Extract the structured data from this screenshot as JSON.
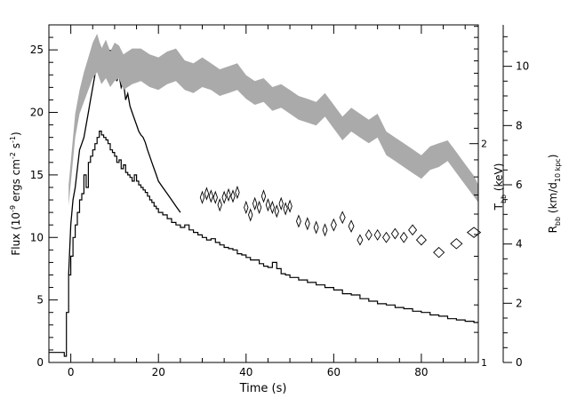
{
  "chart_data": {
    "type": "line",
    "title": "",
    "xlabel": "Time (s)",
    "xlim": [
      -5,
      93
    ],
    "x_ticks": [
      0,
      20,
      40,
      60,
      80
    ],
    "ylabel_left": {
      "main": "Flux (10",
      "sup": "-9",
      "rest": " ergs cm",
      "sup2": "-2",
      "rest2": " s",
      "sup3": "-1",
      "end": ")"
    },
    "ylim_left": [
      0,
      27
    ],
    "y_ticks_left": [
      0,
      5,
      10,
      15,
      20,
      25
    ],
    "ylabel_T": {
      "main": "T",
      "sub": "bb",
      "rest": " (keV)"
    },
    "T_ticks": [
      1,
      2
    ],
    "T_scale": "log",
    "T_map": {
      "T1": 1,
      "flux_at_T1": 0,
      "T2": 2,
      "flux_at_T2": 17.5
    },
    "ylabel_R": {
      "main": "R",
      "sub": "bb",
      "rest": " (km/d",
      "sub2": "10 kpc",
      "end": ")"
    },
    "R_ticks": [
      0,
      2,
      4,
      6,
      8,
      10
    ],
    "R_per_flux": 0.4222,
    "series": [
      {
        "style": "step",
        "axis": "flux",
        "color": "#000000",
        "x": [
          -5,
          -2,
          -1.5,
          -1,
          -0.5,
          0,
          0.5,
          1,
          1.5,
          2,
          2.5,
          3,
          3.5,
          4,
          4.5,
          5,
          5.5,
          6,
          6.5,
          7,
          7.5,
          8,
          8.5,
          9,
          9.5,
          10,
          10.5,
          11,
          11.5,
          12,
          12.5,
          13,
          13.5,
          14,
          14.5,
          15,
          15.5,
          16,
          16.5,
          17,
          17.5,
          18,
          18.5,
          19,
          19.5,
          20,
          21,
          22,
          23,
          24,
          25,
          26,
          27,
          28,
          29,
          30,
          31,
          32,
          33,
          34,
          35,
          36,
          37,
          38,
          39,
          40,
          41,
          42,
          43,
          44,
          45,
          46,
          47,
          48,
          49,
          50,
          52,
          54,
          56,
          58,
          60,
          62,
          64,
          66,
          68,
          70,
          72,
          74,
          76,
          78,
          80,
          82,
          84,
          86,
          88,
          90,
          92,
          93
        ],
        "y": [
          0.8,
          0.8,
          0.5,
          4,
          7,
          8.5,
          10,
          11,
          12,
          13,
          13.5,
          15,
          14,
          16,
          16.5,
          17,
          17.5,
          18,
          18.5,
          18.2,
          18,
          17.8,
          17.5,
          17,
          16.8,
          16.5,
          16,
          16.2,
          15.5,
          15.8,
          15.2,
          15,
          14.8,
          14.5,
          15,
          14.5,
          14.2,
          14,
          13.8,
          13.6,
          13.3,
          13,
          12.8,
          12.5,
          12.3,
          12,
          11.8,
          11.5,
          11.2,
          11,
          10.8,
          11,
          10.6,
          10.4,
          10.2,
          10,
          9.8,
          9.9,
          9.6,
          9.4,
          9.2,
          9.1,
          9,
          8.7,
          8.6,
          8.4,
          8.2,
          8.2,
          7.9,
          7.7,
          7.6,
          8,
          7.5,
          7.1,
          7,
          6.8,
          6.6,
          6.4,
          6.2,
          6,
          5.8,
          5.5,
          5.4,
          5.1,
          4.9,
          4.7,
          4.6,
          4.4,
          4.3,
          4.1,
          4,
          3.8,
          3.7,
          3.5,
          3.4,
          3.3,
          3.2,
          3.2
        ]
      },
      {
        "style": "line",
        "axis": "flux",
        "color": "#000000",
        "x": [
          -0.5,
          0,
          0.5,
          1,
          1.5,
          2,
          2.5,
          3,
          3.5,
          4,
          4.5,
          5,
          5.5,
          6,
          6.5,
          7,
          7.5,
          8,
          8.5,
          9,
          9.5,
          10,
          10.5,
          11,
          11.5,
          12,
          12.5,
          13,
          13.5,
          14,
          14.5,
          15,
          15.5,
          16,
          16.5,
          17,
          17.5,
          18,
          18.5,
          19,
          19.5,
          20,
          21,
          22,
          23,
          24,
          25
        ],
        "y": [
          7,
          11,
          13,
          14,
          15.5,
          17,
          17.5,
          18,
          19,
          20,
          21,
          22,
          23,
          24,
          25.5,
          25,
          24.5,
          25.5,
          24,
          25,
          23,
          24,
          22.5,
          23,
          22,
          22.5,
          21,
          21.5,
          20.5,
          20,
          19.5,
          19,
          18.5,
          18.2,
          18,
          17.6,
          17,
          16.5,
          16,
          15.5,
          15,
          14.5,
          14,
          13.5,
          13,
          12.5,
          12
        ]
      },
      {
        "style": "band",
        "axis": "R",
        "color": "#aaaaaa",
        "x": [
          -0.5,
          1,
          2,
          3,
          4,
          5,
          6,
          7,
          8,
          9,
          10,
          11,
          12,
          14,
          16,
          18,
          20,
          22,
          24,
          26,
          28,
          30,
          32,
          34,
          36,
          38,
          40,
          42,
          44,
          46,
          48,
          50,
          52,
          54,
          56,
          58,
          60,
          62,
          64,
          66,
          68,
          70,
          72,
          74,
          76,
          78,
          80,
          82,
          84,
          86,
          88,
          90,
          92,
          93
        ],
        "y_low": [
          5.3,
          7.6,
          8.4,
          8.8,
          9.2,
          9.6,
          9.8,
          9.4,
          9.6,
          9.3,
          9.5,
          9.6,
          9.2,
          9.4,
          9.5,
          9.3,
          9.2,
          9.4,
          9.5,
          9.2,
          9.1,
          9.3,
          9.2,
          9.0,
          9.1,
          9.2,
          8.9,
          8.7,
          8.8,
          8.5,
          8.6,
          8.4,
          8.2,
          8.1,
          8.0,
          8.3,
          7.9,
          7.5,
          7.8,
          7.6,
          7.4,
          7.6,
          7.0,
          6.8,
          6.6,
          6.4,
          6.2,
          6.5,
          6.6,
          6.8,
          6.4,
          6.0,
          5.6,
          5.4
        ],
        "y_high": [
          6.0,
          8.4,
          9.2,
          9.8,
          10.3,
          10.8,
          11.1,
          10.6,
          10.9,
          10.5,
          10.8,
          10.7,
          10.4,
          10.6,
          10.6,
          10.4,
          10.3,
          10.5,
          10.6,
          10.2,
          10.1,
          10.3,
          10.1,
          9.9,
          10.0,
          10.1,
          9.7,
          9.5,
          9.6,
          9.3,
          9.4,
          9.2,
          9.0,
          8.9,
          8.8,
          9.1,
          8.7,
          8.3,
          8.6,
          8.4,
          8.2,
          8.4,
          7.8,
          7.6,
          7.4,
          7.2,
          7.0,
          7.3,
          7.4,
          7.5,
          7.1,
          6.7,
          6.3,
          6.0
        ]
      },
      {
        "style": "diamond",
        "axis": "T",
        "color": "#000000",
        "x": [
          30,
          31,
          32,
          33,
          34,
          35,
          36,
          37,
          38,
          40,
          41,
          42,
          43,
          44,
          45,
          46,
          47,
          48,
          49,
          50,
          52,
          54,
          56,
          58,
          60,
          62,
          64,
          66,
          68,
          70,
          72,
          74,
          76,
          78,
          80,
          84,
          88,
          92
        ],
        "y": [
          13.2,
          13.5,
          13.3,
          13.2,
          12.6,
          13.2,
          13.4,
          13.3,
          13.6,
          12.4,
          11.8,
          12.7,
          12.4,
          13.3,
          12.6,
          12.4,
          12.1,
          12.7,
          12.3,
          12.5,
          11.3,
          11.1,
          10.8,
          10.6,
          11.0,
          11.6,
          10.9,
          9.8,
          10.2,
          10.2,
          10.0,
          10.3,
          10.0,
          10.6,
          9.8,
          8.8,
          9.5,
          10.4
        ],
        "w": [
          0.9,
          0.9,
          0.9,
          0.9,
          0.9,
          0.9,
          0.9,
          0.9,
          0.9,
          0.9,
          0.9,
          0.9,
          0.9,
          0.9,
          0.9,
          0.9,
          0.9,
          0.9,
          0.9,
          0.9,
          1.0,
          1.0,
          1.0,
          1.0,
          1.2,
          1.2,
          1.2,
          1.2,
          1.4,
          1.4,
          1.6,
          1.6,
          1.6,
          1.8,
          2.2,
          2.4,
          2.6,
          3.0
        ],
        "h": [
          0.9,
          0.9,
          0.9,
          0.9,
          0.9,
          0.9,
          0.9,
          0.9,
          0.9,
          0.9,
          0.9,
          0.9,
          0.9,
          0.9,
          0.9,
          0.9,
          0.9,
          0.9,
          0.9,
          0.9,
          0.9,
          0.9,
          0.9,
          0.9,
          0.9,
          0.9,
          0.9,
          0.8,
          0.8,
          0.8,
          0.8,
          0.8,
          0.8,
          0.8,
          0.8,
          0.8,
          0.8,
          0.8
        ]
      }
    ]
  }
}
